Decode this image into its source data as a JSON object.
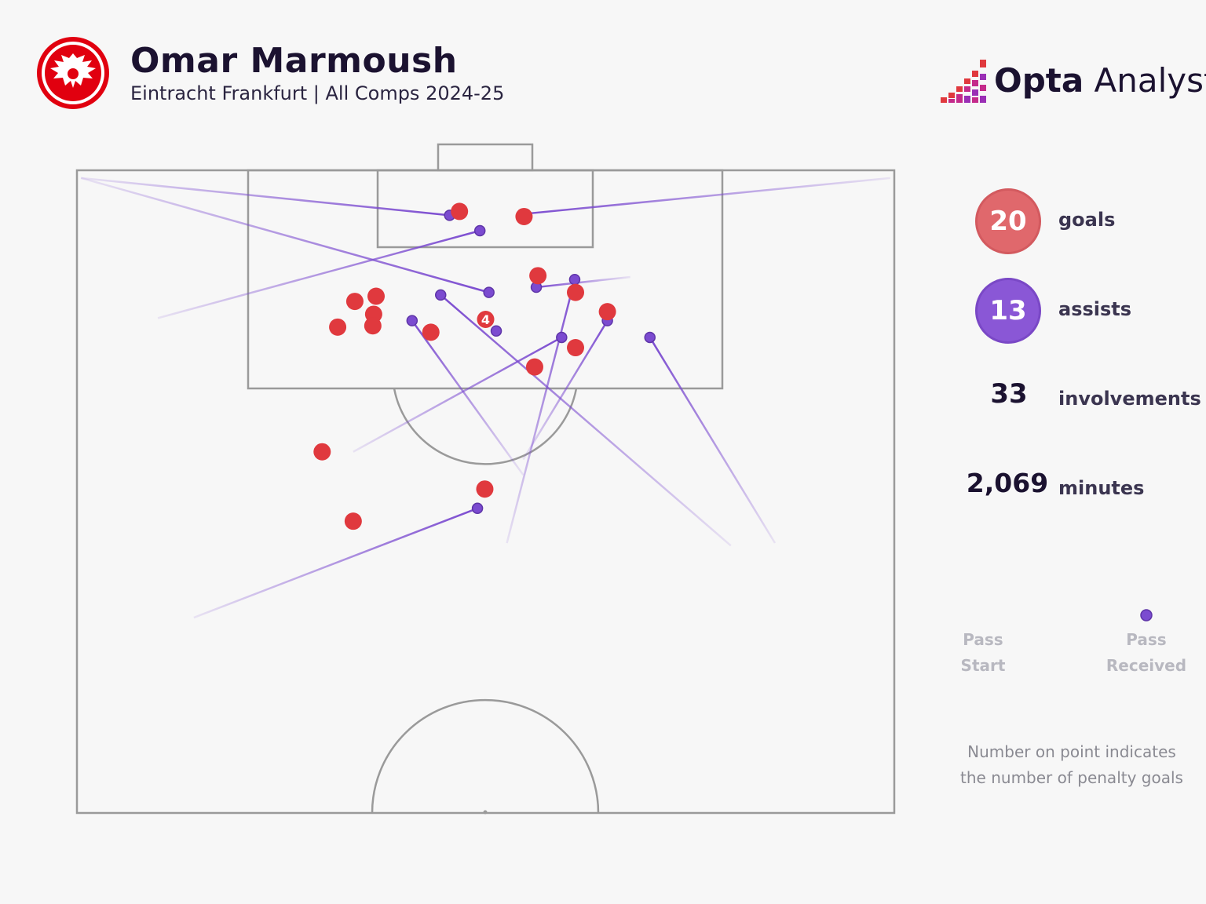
{
  "header": {
    "player_name": "Omar Marmoush",
    "subtitle": "Eintracht Frankfurt | All Comps 2024-25",
    "brand_bold": "Opta",
    "brand_light": " Analyst",
    "crest_icon": "eintracht-frankfurt-eagle-icon",
    "brand_icon": "opta-bars-icon"
  },
  "stats": {
    "goals": {
      "value": "20",
      "label": "goals",
      "color": "#e0686c"
    },
    "assists": {
      "value": "13",
      "label": "assists",
      "color": "#8a57d6"
    },
    "involvements": {
      "value": "33",
      "label": "involvements"
    },
    "minutes": {
      "value": "2,069",
      "label": "minutes"
    }
  },
  "legend": {
    "start_label_1": "Pass",
    "start_label_2": "Start",
    "end_label_1": "Pass",
    "end_label_2": "Received"
  },
  "note": {
    "line1": "Number on point indicates",
    "line2": "the number of penalty goals"
  },
  "chart_data": {
    "type": "scatter",
    "coordinate_system": "half pitch, x 0-100 across width (left to right), y 0-50 distance from goal line",
    "colors": {
      "goal": "#e0393e",
      "assist": "#7b4bd0",
      "pitch_line": "#9a9a9a"
    },
    "goals": [
      {
        "x": 46.8,
        "y": 3.2
      },
      {
        "x": 54.7,
        "y": 3.6
      },
      {
        "x": 56.4,
        "y": 8.2
      },
      {
        "x": 61.0,
        "y": 9.5
      },
      {
        "x": 36.6,
        "y": 9.8
      },
      {
        "x": 34.0,
        "y": 10.2
      },
      {
        "x": 36.3,
        "y": 11.2
      },
      {
        "x": 64.9,
        "y": 11.0
      },
      {
        "x": 31.9,
        "y": 12.2
      },
      {
        "x": 36.2,
        "y": 12.1
      },
      {
        "x": 43.3,
        "y": 12.6
      },
      {
        "x": 50.0,
        "y": 11.6,
        "penalty_goals": 4
      },
      {
        "x": 61.0,
        "y": 13.8
      },
      {
        "x": 56.0,
        "y": 15.3
      },
      {
        "x": 30.0,
        "y": 21.9
      },
      {
        "x": 49.9,
        "y": 24.8
      },
      {
        "x": 33.8,
        "y": 27.3
      }
    ],
    "assists": [
      {
        "start_x": 0.5,
        "start_y": 0.6,
        "end_x": 45.6,
        "end_y": 3.5
      },
      {
        "start_x": 99.5,
        "start_y": 0.6,
        "end_x": 54.6,
        "end_y": 3.4
      },
      {
        "start_x": 9.9,
        "start_y": 11.5,
        "end_x": 49.3,
        "end_y": 4.7
      },
      {
        "start_x": 0.5,
        "start_y": 0.6,
        "end_x": 50.4,
        "end_y": 9.5
      },
      {
        "start_x": 67.7,
        "start_y": 8.3,
        "end_x": 56.2,
        "end_y": 9.1
      },
      {
        "start_x": 52.6,
        "start_y": 29.0,
        "end_x": 60.9,
        "end_y": 8.5
      },
      {
        "start_x": 80.0,
        "start_y": 29.2,
        "end_x": 44.5,
        "end_y": 9.7
      },
      {
        "start_x": 54.6,
        "start_y": 22.5,
        "end_x": 64.9,
        "end_y": 11.7
      },
      {
        "start_x": 54.6,
        "start_y": 23.7,
        "end_x": 41.0,
        "end_y": 11.7
      },
      {
        "start_x": 85.4,
        "start_y": 29.0,
        "end_x": 70.1,
        "end_y": 13.0
      },
      {
        "start_x": 33.8,
        "start_y": 21.9,
        "end_x": 59.3,
        "end_y": 13.0
      },
      {
        "start_x": 51.3,
        "start_y": 12.5,
        "end_x": 51.3,
        "end_y": 12.5
      },
      {
        "start_x": 14.3,
        "start_y": 34.8,
        "end_x": 49.0,
        "end_y": 26.3
      }
    ]
  }
}
